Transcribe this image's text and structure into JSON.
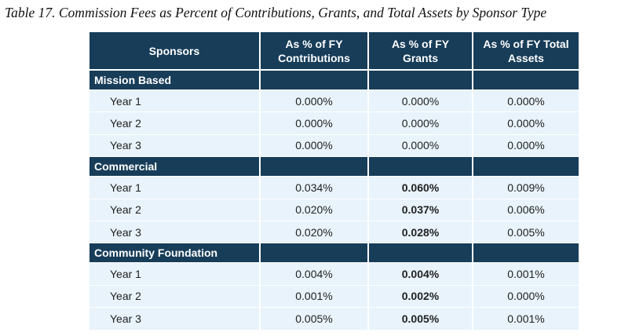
{
  "caption": "Table 17. Commission Fees as Percent of Contributions, Grants, and Total Assets by Sponsor Type",
  "headers": {
    "sponsors": "Sponsors",
    "contributions_line1": "As % of FY",
    "contributions_line2": "Contributions",
    "grants_line1": "As % of FY",
    "grants_line2": "Grants",
    "assets_line1": "As % of FY Total",
    "assets_line2": "Assets"
  },
  "groups": [
    {
      "name": "Mission Based",
      "rows": [
        {
          "year": "Year 1",
          "contributions": "0.000%",
          "grants": "0.000%",
          "assets": "0.000%"
        },
        {
          "year": "Year 2",
          "contributions": "0.000%",
          "grants": "0.000%",
          "assets": "0.000%"
        },
        {
          "year": "Year 3",
          "contributions": "0.000%",
          "grants": "0.000%",
          "assets": "0.000%"
        }
      ]
    },
    {
      "name": "Commercial",
      "rows": [
        {
          "year": "Year 1",
          "contributions": "0.034%",
          "grants": "0.060%",
          "assets": "0.009%"
        },
        {
          "year": "Year 2",
          "contributions": "0.020%",
          "grants": "0.037%",
          "assets": "0.006%"
        },
        {
          "year": "Year 3",
          "contributions": "0.020%",
          "grants": "0.028%",
          "assets": "0.005%"
        }
      ]
    },
    {
      "name": "Community Foundation",
      "rows": [
        {
          "year": "Year 1",
          "contributions": "0.004%",
          "grants": "0.004%",
          "assets": "0.001%"
        },
        {
          "year": "Year 2",
          "contributions": "0.001%",
          "grants": "0.002%",
          "assets": "0.000%"
        },
        {
          "year": "Year 3",
          "contributions": "0.005%",
          "grants": "0.005%",
          "assets": "0.001%"
        }
      ]
    }
  ]
}
